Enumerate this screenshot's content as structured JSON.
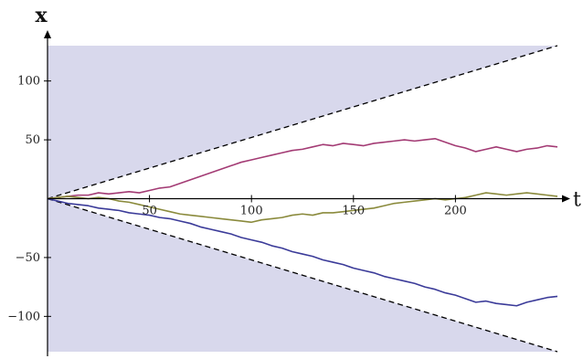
{
  "chart_data": {
    "type": "line",
    "title": "",
    "xlabel": "t",
    "ylabel": "x",
    "xlim": [
      0,
      250
    ],
    "ylim": [
      -130,
      130
    ],
    "x_ticks": [
      50,
      100,
      150,
      200
    ],
    "y_ticks": [
      -100,
      -50,
      50,
      100
    ],
    "x_tick_labels": [
      "50",
      "100",
      "150",
      "200"
    ],
    "y_tick_labels": [
      "−100",
      "−50",
      "50",
      "100"
    ],
    "grid": false,
    "legend": "none",
    "shaded_regions": [
      {
        "fill": "#d8d8ec",
        "polygon": [
          [
            0,
            0
          ],
          [
            0,
            130
          ],
          [
            250,
            130
          ]
        ]
      },
      {
        "fill": "#d8d8ec",
        "polygon": [
          [
            0,
            0
          ],
          [
            0,
            -130
          ],
          [
            250,
            -130
          ]
        ]
      }
    ],
    "light_cone": {
      "stroke": "#000000",
      "dash": true,
      "upper": [
        [
          0,
          0
        ],
        [
          250,
          130
        ]
      ],
      "lower": [
        [
          0,
          0
        ],
        [
          250,
          -130
        ]
      ]
    },
    "series": [
      {
        "color": "#a33b74",
        "x": [
          0,
          5,
          10,
          15,
          20,
          25,
          30,
          35,
          40,
          45,
          50,
          55,
          60,
          65,
          70,
          75,
          80,
          85,
          90,
          95,
          100,
          105,
          110,
          115,
          120,
          125,
          130,
          135,
          140,
          145,
          150,
          155,
          160,
          165,
          170,
          175,
          180,
          185,
          190,
          195,
          200,
          205,
          210,
          215,
          220,
          225,
          230,
          235,
          240,
          245,
          250
        ],
        "y": [
          0,
          1,
          2,
          3,
          3,
          5,
          4,
          5,
          6,
          5,
          7,
          9,
          10,
          13,
          16,
          19,
          22,
          25,
          28,
          31,
          33,
          35,
          37,
          39,
          41,
          42,
          44,
          46,
          45,
          47,
          46,
          45,
          47,
          48,
          49,
          50,
          49,
          50,
          51,
          48,
          45,
          43,
          40,
          42,
          44,
          42,
          40,
          42,
          43,
          45,
          44
        ]
      },
      {
        "color": "#8a8a3c",
        "x": [
          0,
          5,
          10,
          15,
          20,
          25,
          30,
          35,
          40,
          45,
          50,
          55,
          60,
          65,
          70,
          75,
          80,
          85,
          90,
          95,
          100,
          105,
          110,
          115,
          120,
          125,
          130,
          135,
          140,
          145,
          150,
          155,
          160,
          165,
          170,
          175,
          180,
          185,
          190,
          195,
          200,
          205,
          210,
          215,
          220,
          225,
          230,
          235,
          240,
          245,
          250
        ],
        "y": [
          0,
          1,
          2,
          1,
          0,
          1,
          0,
          -2,
          -3,
          -5,
          -7,
          -9,
          -11,
          -13,
          -14,
          -15,
          -16,
          -17,
          -18,
          -19,
          -20,
          -18,
          -17,
          -16,
          -14,
          -13,
          -14,
          -12,
          -12,
          -11,
          -10,
          -9,
          -8,
          -6,
          -4,
          -3,
          -2,
          -1,
          0,
          -1,
          0,
          1,
          3,
          5,
          4,
          3,
          4,
          5,
          4,
          3,
          2
        ]
      },
      {
        "color": "#3b3b99",
        "x": [
          0,
          5,
          10,
          15,
          20,
          25,
          30,
          35,
          40,
          45,
          50,
          55,
          60,
          65,
          70,
          75,
          80,
          85,
          90,
          95,
          100,
          105,
          110,
          115,
          120,
          125,
          130,
          135,
          140,
          145,
          150,
          155,
          160,
          165,
          170,
          175,
          180,
          185,
          190,
          195,
          200,
          205,
          210,
          215,
          220,
          225,
          230,
          235,
          240,
          245,
          250
        ],
        "y": [
          0,
          -2,
          -4,
          -5,
          -6,
          -8,
          -9,
          -10,
          -12,
          -13,
          -14,
          -16,
          -17,
          -19,
          -21,
          -24,
          -26,
          -28,
          -30,
          -33,
          -35,
          -37,
          -40,
          -42,
          -45,
          -47,
          -49,
          -52,
          -54,
          -56,
          -59,
          -61,
          -63,
          -66,
          -68,
          -70,
          -72,
          -75,
          -77,
          -80,
          -82,
          -85,
          -88,
          -87,
          -89,
          -90,
          -91,
          -88,
          -86,
          -84,
          -83
        ]
      }
    ]
  }
}
